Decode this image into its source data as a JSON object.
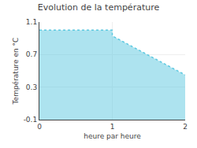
{
  "chart_data": {
    "type": "area",
    "title": "Evolution de la température",
    "x_label": "heure par heure",
    "y_label": "Température en °C",
    "x": [
      0,
      1,
      1,
      2
    ],
    "values": [
      1.0,
      1.0,
      0.93,
      0.45
    ],
    "color": "#5bc8e0",
    "line_style": "dotted",
    "xlim": [
      0,
      2
    ],
    "xticks": [
      0,
      1,
      2
    ],
    "ylim": [
      -0.1,
      1.1
    ],
    "yticks": [
      -0.1,
      0.3,
      0.7,
      1.1
    ],
    "grid": true
  }
}
